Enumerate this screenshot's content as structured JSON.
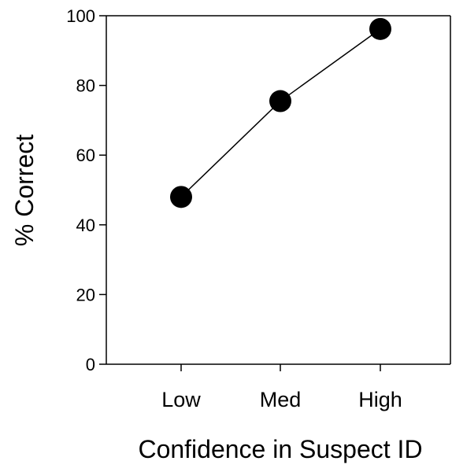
{
  "chart_data": {
    "type": "line",
    "title": "",
    "xlabel": "Confidence in Suspect ID",
    "ylabel": "% Correct",
    "categories": [
      "Low",
      "Med",
      "High"
    ],
    "series": [
      {
        "values": [
          48,
          75.5,
          96.2
        ]
      }
    ],
    "ylim": [
      0,
      100
    ],
    "yticks": [
      "0",
      "20",
      "40",
      "60",
      "80",
      "100"
    ],
    "grid": false,
    "legend": "none",
    "colors": {
      "line": "#000000",
      "marker": "#000000",
      "axis": "#000000"
    }
  }
}
